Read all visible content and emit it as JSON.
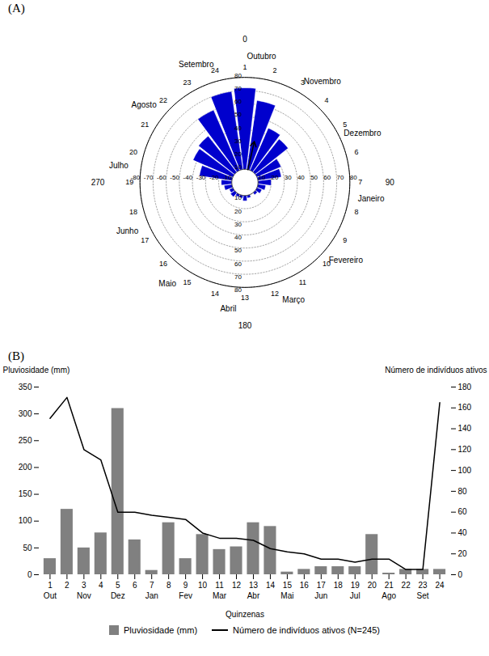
{
  "chart_data": [
    {
      "type": "rose",
      "title": "(A)",
      "categories": [
        "1",
        "2",
        "3",
        "4",
        "5",
        "6",
        "7",
        "8",
        "9",
        "10",
        "11",
        "12",
        "13",
        "14",
        "15",
        "16",
        "17",
        "18",
        "19",
        "20",
        "21",
        "22",
        "23",
        "24"
      ],
      "values": [
        72,
        63,
        45,
        42,
        30,
        28,
        20,
        16,
        14,
        12,
        10,
        12,
        14,
        12,
        12,
        14,
        13,
        16,
        18,
        35,
        43,
        45,
        60,
        70
      ],
      "color": "#0000CD",
      "inner_radius": 10,
      "rlim": [
        0,
        80
      ],
      "rticks": [
        10,
        20,
        30,
        40,
        50,
        60,
        70,
        80
      ],
      "xticks": [
        -80,
        -70,
        -60,
        -50,
        -40,
        -30,
        -20,
        -10,
        10,
        20,
        30,
        40,
        50,
        60,
        70,
        80
      ],
      "theta_ticks": [
        0,
        90,
        180,
        270
      ],
      "month_labels": [
        "Outubro",
        "Novembro",
        "Dezembro",
        "Janeiro",
        "Fevereiro",
        "Março",
        "Abril",
        "Maio",
        "Junho",
        "Julho",
        "Agosto",
        "Setembro"
      ],
      "mean_angle": 13,
      "mean_length": 22
    },
    {
      "type": "bar",
      "title": "(B)",
      "categories": [
        "1",
        "2",
        "3",
        "4",
        "5",
        "6",
        "7",
        "8",
        "9",
        "10",
        "11",
        "12",
        "13",
        "14",
        "15",
        "16",
        "17",
        "18",
        "19",
        "20",
        "21",
        "22",
        "23",
        "24"
      ],
      "month_labels": [
        "Out",
        "Nov",
        "Dez",
        "Jan",
        "Fev",
        "Mar",
        "Abr",
        "Mai",
        "Jun",
        "Jul",
        "Ago",
        "Set"
      ],
      "series": [
        {
          "name": "Pluviosidade (mm)",
          "type": "bar",
          "color": "#808080",
          "values": [
            30,
            122,
            50,
            78,
            310,
            65,
            8,
            97,
            30,
            75,
            47,
            52,
            97,
            90,
            5,
            10,
            15,
            15,
            15,
            75,
            3,
            10,
            10,
            10
          ]
        },
        {
          "name": "Número de indivíduos ativos (N=245)",
          "type": "line",
          "color": "#000000",
          "axis": "y2",
          "values": [
            150,
            170,
            120,
            110,
            60,
            60,
            57,
            55,
            53,
            40,
            35,
            35,
            33,
            25,
            22,
            20,
            15,
            15,
            12,
            15,
            15,
            5,
            5,
            165
          ]
        }
      ],
      "xlabel": "Quinzenas",
      "ylabel": "Pluviosidade (mm)",
      "y2label": "Número de indivíduos ativos",
      "ylim": [
        0,
        350
      ],
      "yticks": [
        0,
        50,
        100,
        150,
        200,
        250,
        300,
        350
      ],
      "y2lim": [
        0,
        180
      ],
      "y2ticks": [
        0,
        20,
        40,
        60,
        80,
        100,
        120,
        140,
        160,
        180
      ],
      "legend": "bottom",
      "grid": false
    }
  ]
}
